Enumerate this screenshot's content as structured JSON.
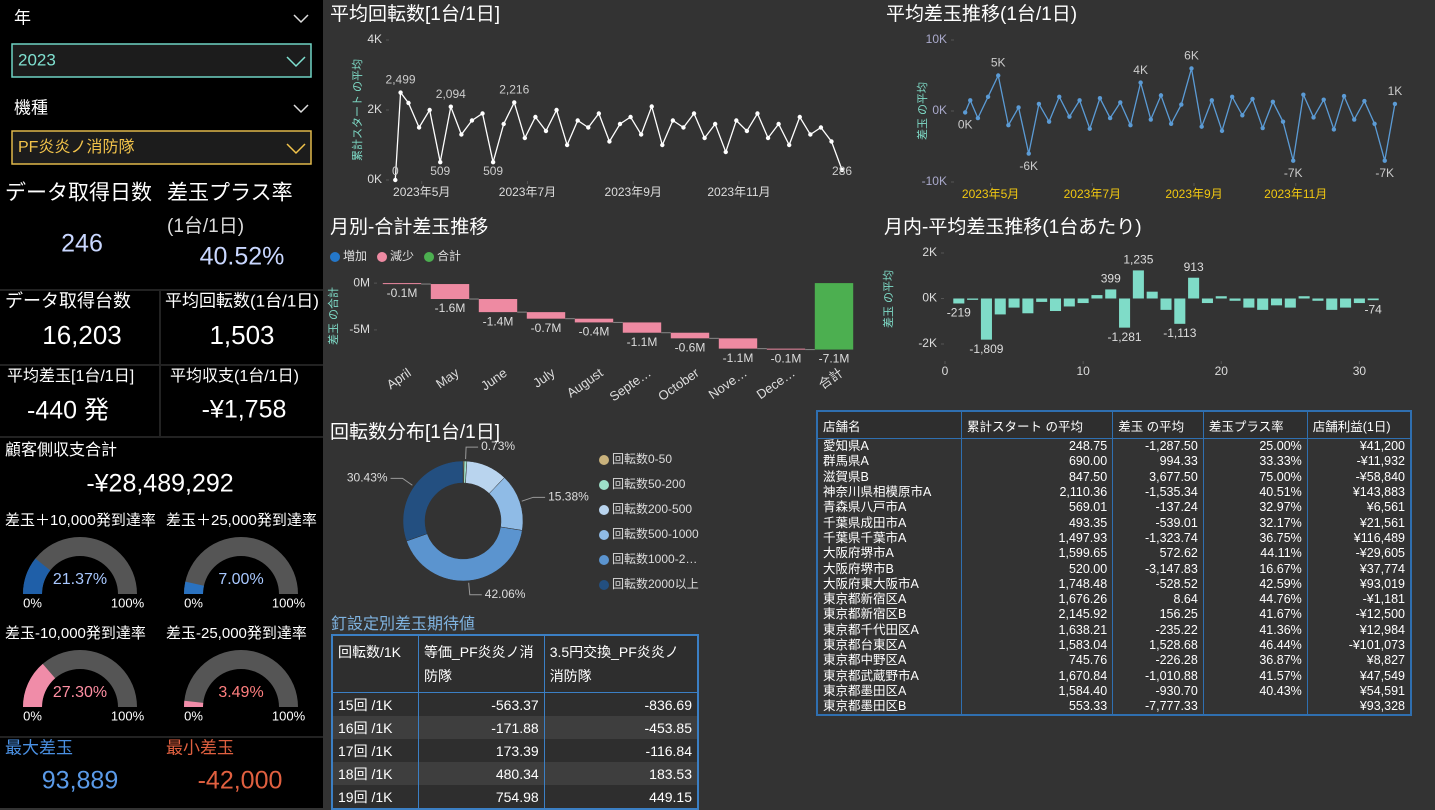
{
  "filters": {
    "year": {
      "label": "年",
      "value": "2023"
    },
    "model": {
      "label": "機種",
      "value": "PF炎炎ノ消防隊"
    }
  },
  "kpis": [
    {
      "label": "データ取得日数",
      "value": "246"
    },
    {
      "label": "差玉プラス率",
      "sublabel": "(1台/1日)",
      "value": "40.52%"
    },
    {
      "label": "データ取得台数",
      "value": "16,203"
    },
    {
      "label": "平均回転数(1台/1日)",
      "value": "1,503"
    },
    {
      "label": "平均差玉[1台/1日]",
      "value": "-440 発"
    },
    {
      "label": "平均収支(1台/1日)",
      "value": "-¥1,758"
    },
    {
      "label": "顧客側収支合計",
      "value": "-¥28,489,292"
    },
    {
      "label": "最大差玉",
      "value": "93,889"
    },
    {
      "label": "最小差玉",
      "value": "-42,000"
    }
  ],
  "chart_data": [
    {
      "type": "line",
      "title": "平均回転数[1台/1日]",
      "y_label": "累計スタート の平均",
      "color": "#ffffff",
      "xtick_color": "#dddddd",
      "xlim": [
        4.4,
        13.1
      ],
      "xticks": [
        {
          "value": 5,
          "label": "2023年5月"
        },
        {
          "value": 7,
          "label": "2023年7月"
        },
        {
          "value": 9,
          "label": "2023年9月"
        },
        {
          "value": 11,
          "label": "2023年11月"
        }
      ],
      "ylim": [
        0,
        4000
      ],
      "yticks": [
        {
          "value": 0,
          "label": "0K"
        },
        {
          "value": 2000,
          "label": "2K"
        },
        {
          "value": 4000,
          "label": "4K"
        }
      ],
      "x": [
        4.5,
        4.6,
        4.75,
        4.95,
        5.15,
        5.35,
        5.55,
        5.75,
        5.95,
        6.15,
        6.35,
        6.55,
        6.75,
        6.95,
        7.15,
        7.35,
        7.55,
        7.75,
        7.95,
        8.15,
        8.35,
        8.55,
        8.75,
        8.95,
        9.15,
        9.35,
        9.55,
        9.75,
        9.95,
        10.15,
        10.35,
        10.55,
        10.75,
        10.95,
        11.15,
        11.35,
        11.55,
        11.75,
        11.95,
        12.15,
        12.35,
        12.55,
        12.75,
        12.95
      ],
      "values": [
        0,
        2499,
        2200,
        1500,
        2000,
        509,
        2094,
        1300,
        1700,
        1900,
        509,
        1600,
        2216,
        1200,
        1800,
        1400,
        2000,
        1000,
        1700,
        1500,
        1900,
        1100,
        1600,
        1800,
        1300,
        2100,
        1000,
        1700,
        1500,
        1900,
        1200,
        1600,
        800,
        1700,
        1400,
        1900,
        1200,
        1600,
        1000,
        1800,
        1300,
        1500,
        1100,
        286
      ],
      "value_labels": [
        "0",
        "2,499",
        null,
        null,
        null,
        "509",
        "2,094",
        null,
        null,
        null,
        "509",
        null,
        "2,216",
        null,
        null,
        null,
        null,
        null,
        null,
        null,
        null,
        null,
        null,
        null,
        null,
        null,
        null,
        null,
        null,
        null,
        null,
        null,
        null,
        null,
        null,
        null,
        null,
        null,
        null,
        null,
        null,
        null,
        null,
        "286"
      ]
    },
    {
      "type": "line",
      "title": "平均差玉推移(1台/1日)",
      "y_label": "差玉 の平均",
      "color": "#5b9bd5",
      "xtick_color": "#f2c811",
      "xlim": [
        4.3,
        13.05
      ],
      "xticks": [
        {
          "value": 5,
          "label": "2023年5月"
        },
        {
          "value": 7,
          "label": "2023年7月"
        },
        {
          "value": 9,
          "label": "2023年9月"
        },
        {
          "value": 11,
          "label": "2023年11月"
        }
      ],
      "ylim": [
        -10000,
        10000
      ],
      "yticks": [
        {
          "value": -10000,
          "label": "-10K"
        },
        {
          "value": 0,
          "label": "0K"
        },
        {
          "value": 10000,
          "label": "10K"
        }
      ],
      "x": [
        4.5,
        4.6,
        4.75,
        4.95,
        5.15,
        5.35,
        5.55,
        5.75,
        5.95,
        6.15,
        6.35,
        6.55,
        6.75,
        6.95,
        7.15,
        7.35,
        7.55,
        7.75,
        7.95,
        8.15,
        8.35,
        8.55,
        8.75,
        8.95,
        9.15,
        9.35,
        9.55,
        9.75,
        9.95,
        10.15,
        10.35,
        10.55,
        10.75,
        10.95,
        11.15,
        11.35,
        11.55,
        11.75,
        11.95,
        12.15,
        12.35,
        12.55,
        12.75,
        12.95
      ],
      "values": [
        -200,
        1500,
        -1000,
        2000,
        5000,
        -2000,
        500,
        -6000,
        1000,
        -1500,
        2000,
        -800,
        1500,
        -2500,
        1800,
        -1000,
        1200,
        -2000,
        4000,
        -1200,
        2200,
        -1800,
        900,
        6000,
        -2200,
        1500,
        -2800,
        2000,
        -600,
        1700,
        -2400,
        1300,
        -1500,
        -7000,
        2300,
        -900,
        1600,
        -2600,
        2100,
        -1200,
        1400,
        -1800,
        -7000,
        1000
      ],
      "value_labels": [
        "0K",
        null,
        null,
        null,
        "5K",
        null,
        null,
        "-6K",
        null,
        null,
        null,
        null,
        null,
        null,
        null,
        null,
        null,
        null,
        "4K",
        null,
        null,
        null,
        null,
        "6K",
        null,
        null,
        null,
        null,
        null,
        null,
        null,
        null,
        null,
        "-7K",
        null,
        null,
        null,
        null,
        null,
        null,
        null,
        null,
        "-7K",
        "1K"
      ]
    },
    {
      "type": "waterfall",
      "title": "月別-合計差玉推移",
      "y_label": "差玉 の合計",
      "legend": [
        {
          "name": "増加",
          "color": "#2477c9"
        },
        {
          "name": "減少",
          "color": "#ee8aa2"
        },
        {
          "name": "合計",
          "color": "#4caf50"
        }
      ],
      "categories": [
        "April",
        "May",
        "June",
        "July",
        "August",
        "Septe…",
        "October",
        "Nove…",
        "Dece…",
        "合計"
      ],
      "values": [
        -100000,
        -1600000,
        -1400000,
        -700000,
        -400000,
        -1100000,
        -600000,
        -1100000,
        -100000,
        -7100000
      ],
      "value_labels": [
        "-0.1M",
        "-1.6M",
        "-1.4M",
        "-0.7M",
        "-0.4M",
        "-1.1M",
        "-0.6M",
        "-1.1M",
        "-0.1M",
        "-7.1M"
      ],
      "is_total": [
        false,
        false,
        false,
        false,
        false,
        false,
        false,
        false,
        false,
        true
      ],
      "ylim": [
        -8000000,
        1400000
      ],
      "yticks": [
        {
          "value": 0,
          "label": "0M"
        },
        {
          "value": -5000000,
          "label": "-5M"
        }
      ]
    },
    {
      "type": "bar",
      "title": "月内-平均差玉推移(1台あたり)",
      "y_label": "差玉 の平均",
      "color": "#7fdcc8",
      "xlim": [
        0,
        32
      ],
      "xticks": [
        0,
        10,
        20,
        30
      ],
      "ylim": [
        -2000,
        2000
      ],
      "yticks": [
        {
          "value": -2000,
          "label": "-2K"
        },
        {
          "value": 0,
          "label": "0K"
        },
        {
          "value": 2000,
          "label": "2K"
        }
      ],
      "x": [
        1,
        2,
        3,
        4,
        5,
        6,
        7,
        8,
        9,
        10,
        11,
        12,
        13,
        14,
        15,
        16,
        17,
        18,
        19,
        20,
        21,
        22,
        23,
        24,
        25,
        26,
        27,
        28,
        29,
        30,
        31
      ],
      "values": [
        -219,
        -60,
        -1809,
        -700,
        -400,
        -650,
        -150,
        -550,
        -350,
        -200,
        150,
        399,
        -1281,
        1235,
        300,
        -500,
        -1113,
        913,
        -200,
        100,
        -100,
        -400,
        -500,
        -300,
        -400,
        100,
        -100,
        -500,
        -400,
        -200,
        -74
      ],
      "value_labels": [
        "-219",
        null,
        "-1,809",
        null,
        null,
        null,
        null,
        null,
        null,
        null,
        null,
        "399",
        "-1,281",
        "1,235",
        null,
        null,
        "-1,113",
        "913",
        null,
        null,
        null,
        null,
        null,
        null,
        null,
        null,
        null,
        null,
        null,
        null,
        "-74"
      ]
    },
    {
      "type": "donut",
      "title": "回転数分布[1台/1日]",
      "categories": [
        "回転数0-50",
        "回転数50-200",
        "回転数200-500",
        "回転数500-1000",
        "回転数1000-2…",
        "回転数2000以上"
      ],
      "colors": [
        "#c9b27c",
        "#9de0c8",
        "#b9d4ee",
        "#8fbbe6",
        "#5b94cf",
        "#234f80"
      ],
      "values": [
        0.3,
        0.73,
        11.1,
        15.38,
        42.06,
        30.43
      ],
      "value_labels": [
        null,
        "0.73%",
        null,
        "15.38%",
        "42.06%",
        "30.43%"
      ]
    },
    {
      "type": "gauge",
      "title": "差玉＋10,000発到達率",
      "value": 21.37,
      "value_label": "21.37%",
      "color": "#1f5fa8",
      "text_color": "#a8c8ff",
      "ylim": [
        0,
        100
      ],
      "yticks": [
        {
          "value": 0,
          "label": "0%"
        },
        {
          "value": 100,
          "label": "100%"
        }
      ]
    },
    {
      "type": "gauge",
      "title": "差玉＋25,000発到達率",
      "value": 7.0,
      "value_label": "7.00%",
      "color": "#2a72c0",
      "text_color": "#a8c8ff",
      "ylim": [
        0,
        100
      ],
      "yticks": [
        {
          "value": 0,
          "label": "0%"
        },
        {
          "value": 100,
          "label": "100%"
        }
      ]
    },
    {
      "type": "gauge",
      "title": "差玉-10,000発到達率",
      "value": 27.3,
      "value_label": "27.30%",
      "color": "#f08ca8",
      "text_color": "#ff8fa3",
      "ylim": [
        0,
        100
      ],
      "yticks": [
        {
          "value": 0,
          "label": "0%"
        },
        {
          "value": 100,
          "label": "100%"
        }
      ]
    },
    {
      "type": "gauge",
      "title": "差玉-25,000発到達率",
      "value": 3.49,
      "value_label": "3.49%",
      "color": "#f08ca8",
      "text_color": "#ff7f7f",
      "ylim": [
        0,
        100
      ],
      "yticks": [
        {
          "value": 0,
          "label": "0%"
        },
        {
          "value": 100,
          "label": "100%"
        }
      ]
    }
  ],
  "tables": [
    {
      "title": "釘設定別差玉期待値",
      "columns": [
        "回転数/1K",
        "等価_PF炎炎ノ消防隊",
        "3.5円交換_PF炎炎ノ消防隊"
      ],
      "rows": [
        [
          "15回 /1K",
          "-563.37",
          "-836.69"
        ],
        [
          "16回 /1K",
          "-171.88",
          "-453.85"
        ],
        [
          "17回 /1K",
          "173.39",
          "-116.84"
        ],
        [
          "18回 /1K",
          "480.34",
          "183.53"
        ],
        [
          "19回 /1K",
          "754.98",
          "449.15"
        ]
      ]
    },
    {
      "columns": [
        "店舗名",
        "累計スタート の平均",
        "差玉 の平均",
        "差玉プラス率",
        "店舗利益(1日)"
      ],
      "rows": [
        [
          "愛知県A",
          "248.75",
          "-1,287.50",
          "25.00%",
          "¥41,200"
        ],
        [
          "群馬県A",
          "690.00",
          "994.33",
          "33.33%",
          "-¥11,932"
        ],
        [
          "滋賀県B",
          "847.50",
          "3,677.50",
          "75.00%",
          "-¥58,840"
        ],
        [
          "神奈川県相模原市A",
          "2,110.36",
          "-1,535.34",
          "40.51%",
          "¥143,883"
        ],
        [
          "青森県八戸市A",
          "569.01",
          "-137.24",
          "32.97%",
          "¥6,561"
        ],
        [
          "千葉県成田市A",
          "493.35",
          "-539.01",
          "32.17%",
          "¥21,561"
        ],
        [
          "千葉県千葉市A",
          "1,497.93",
          "-1,323.74",
          "36.75%",
          "¥116,489"
        ],
        [
          "大阪府堺市A",
          "1,599.65",
          "572.62",
          "44.11%",
          "-¥29,605"
        ],
        [
          "大阪府堺市B",
          "520.00",
          "-3,147.83",
          "16.67%",
          "¥37,774"
        ],
        [
          "大阪府東大阪市A",
          "1,748.48",
          "-528.52",
          "42.59%",
          "¥93,019"
        ],
        [
          "東京都新宿区A",
          "1,676.26",
          "8.64",
          "44.76%",
          "-¥1,181"
        ],
        [
          "東京都新宿区B",
          "2,145.92",
          "156.25",
          "41.67%",
          "-¥12,500"
        ],
        [
          "東京都千代田区A",
          "1,638.21",
          "-235.22",
          "41.36%",
          "¥12,984"
        ],
        [
          "東京都台東区A",
          "1,583.04",
          "1,528.68",
          "46.44%",
          "-¥101,073"
        ],
        [
          "東京都中野区A",
          "745.76",
          "-226.28",
          "36.87%",
          "¥8,827"
        ],
        [
          "東京都武蔵野市A",
          "1,670.84",
          "-1,010.88",
          "41.57%",
          "¥47,549"
        ],
        [
          "東京都墨田区A",
          "1,584.40",
          "-930.70",
          "40.43%",
          "¥54,591"
        ],
        [
          "東京都墨田区B",
          "553.33",
          "-7,777.33",
          null,
          "¥93,328"
        ]
      ]
    }
  ]
}
